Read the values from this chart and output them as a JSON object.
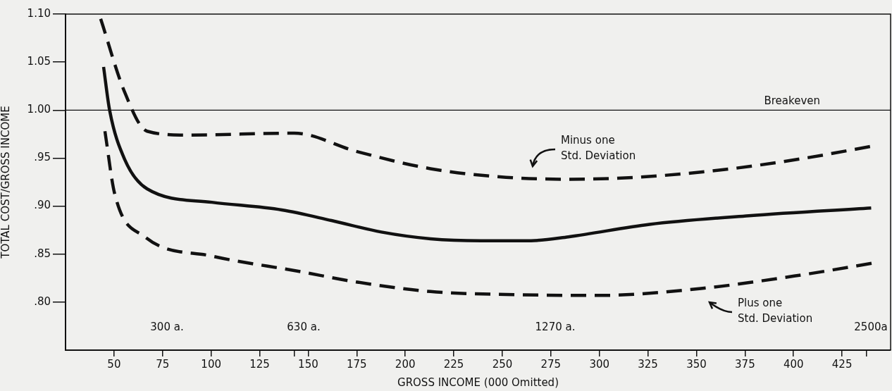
{
  "chart_data": {
    "type": "line",
    "xlabel": "GROSS INCOME (000 Omitted)",
    "ylabel": "TOTAL COST/GROSS INCOME",
    "xlim": [
      25,
      450
    ],
    "ylim": [
      0.75,
      1.1
    ],
    "xticks": [
      50,
      75,
      100,
      125,
      {
        "value": 143,
        "label": null
      },
      150,
      175,
      200,
      225,
      250,
      275,
      300,
      325,
      350,
      375,
      400,
      425,
      {
        "value": 437.5,
        "label": null
      }
    ],
    "yticks": [
      {
        "value": 0.8,
        "label": ".80"
      },
      {
        "value": 0.85,
        "label": ".85"
      },
      {
        "value": 0.9,
        "label": ".90"
      },
      {
        "value": 0.95,
        "label": ".95"
      },
      {
        "value": 1.0,
        "label": "1.00"
      },
      {
        "value": 1.05,
        "label": "1.05"
      },
      {
        "value": 1.1,
        "label": "1.10"
      }
    ],
    "grid": false,
    "legend": false,
    "marker": "none",
    "series": [
      {
        "color": "#111111",
        "line_style": "solid",
        "x": [
          44.6,
          47.7,
          55.4,
          67,
          100.4,
          136.4,
          162,
          187.7,
          213,
          239,
          264.8,
          284,
          325.8,
          377,
          440
        ],
        "values": [
          1.045,
          1.0,
          0.949,
          0.918,
          0.904,
          0.896,
          0.885,
          0.873,
          0.866,
          0.864,
          0.864,
          0.868,
          0.881,
          0.89,
          0.898
        ]
      },
      {
        "color": "#111111",
        "line_style": "dashed",
        "x": [
          43.1,
          55.4,
          67,
          87.5,
          142.8,
          174.8,
          213,
          251.9,
          284,
          319,
          364,
          403,
          439.4
        ],
        "values": [
          1.095,
          1.019,
          0.978,
          0.974,
          0.976,
          0.957,
          0.939,
          0.93,
          0.928,
          0.93,
          0.938,
          0.949,
          0.962
        ]
      },
      {
        "color": "#111111",
        "line_style": "dashed",
        "x": [
          45.3,
          50.3,
          65.9,
          100.4,
          145.4,
          174.8,
          213,
          251.9,
          300,
          351.5,
          403,
          442
        ],
        "values": [
          0.978,
          0.913,
          0.868,
          0.848,
          0.832,
          0.821,
          0.811,
          0.808,
          0.807,
          0.814,
          0.828,
          0.841
        ]
      }
    ],
    "ref_lines": [
      {
        "axis": "y",
        "value": 1.0,
        "label": "Breakeven"
      }
    ],
    "annotations": [
      "Minus one\nStd. Deviation",
      "Plus one\nStd. Deviation",
      "300 a.",
      "630 a.",
      "1270 a.",
      "2500a"
    ]
  }
}
